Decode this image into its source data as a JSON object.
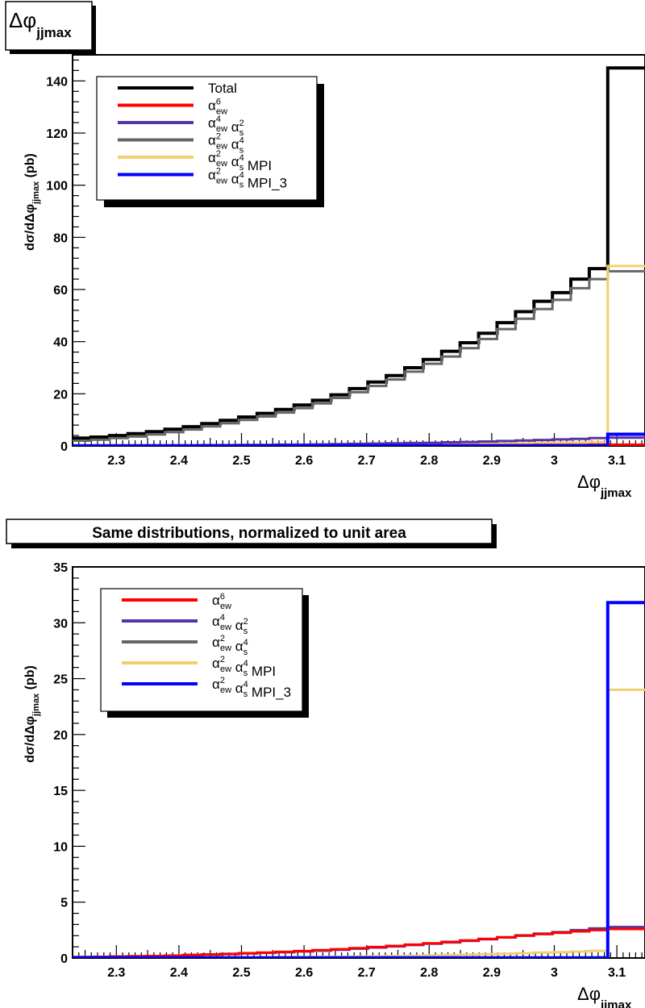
{
  "chart_data": [
    {
      "type": "step",
      "title": "Δφ_jjmax",
      "title_parts": {
        "main": "Δφ",
        "sub": "jjmax"
      },
      "xlabel_parts": {
        "main": "Δφ",
        "sub": "jjmax"
      },
      "ylabel_parts": {
        "main": "dσ/dΔφ",
        "sub": "jjmax",
        "tail": "  (pb)"
      },
      "xlim": [
        2.23,
        3.145
      ],
      "ylim": [
        0,
        150
      ],
      "x_ticks": [
        "2.3",
        "2.4",
        "2.5",
        "2.6",
        "2.7",
        "2.8",
        "2.9",
        "3",
        "3.1"
      ],
      "y_ticks": [
        "0",
        "20",
        "40",
        "60",
        "80",
        "100",
        "120",
        "140"
      ],
      "x_tick_values": [
        2.3,
        2.4,
        2.5,
        2.6,
        2.7,
        2.8,
        2.9,
        3.0,
        3.1
      ],
      "y_tick_values": [
        0,
        20,
        40,
        60,
        80,
        100,
        120,
        140
      ],
      "bin_edges": [
        2.23,
        2.2595,
        2.289,
        2.3185,
        2.348,
        2.3775,
        2.407,
        2.4365,
        2.466,
        2.4955,
        2.525,
        2.5545,
        2.584,
        2.6135,
        2.643,
        2.6725,
        2.702,
        2.7315,
        2.761,
        2.7905,
        2.82,
        2.8495,
        2.879,
        2.9085,
        2.938,
        2.9675,
        2.997,
        3.0265,
        3.056,
        3.0855,
        3.115,
        3.145
      ],
      "legend_position": "top-left",
      "legend": [
        {
          "label": "Total",
          "color": "#000000"
        },
        {
          "label": "α^6_ew",
          "parts": [
            [
              "α",
              "6",
              "ew"
            ]
          ],
          "color": "#ff0000"
        },
        {
          "label": "α^4_ew α^2_s",
          "parts": [
            [
              "α",
              "4",
              "ew"
            ],
            [
              "α",
              "2",
              "s"
            ]
          ],
          "color": "#5533aa"
        },
        {
          "label": "α^2_ew α^4_s",
          "parts": [
            [
              "α",
              "2",
              "ew"
            ],
            [
              "α",
              "4",
              "s"
            ]
          ],
          "color": "#666666"
        },
        {
          "label": "α^2_ew α^4_s MPI",
          "parts": [
            [
              "α",
              "2",
              "ew"
            ],
            [
              "α",
              "4",
              "s"
            ]
          ],
          "suffix": " MPI",
          "color": "#f0d070"
        },
        {
          "label": "α^2_ew α^4_s MPI_3",
          "parts": [
            [
              "α",
              "2",
              "ew"
            ],
            [
              "α",
              "4",
              "s"
            ]
          ],
          "suffix": " MPI_3",
          "color": "#0000ff"
        }
      ],
      "series": [
        {
          "name": "Total",
          "color": "#000000",
          "width": 4,
          "values": [
            3,
            3.4,
            4,
            4.7,
            5.5,
            6.4,
            7.4,
            8.6,
            9.8,
            11.1,
            12.5,
            14,
            15.7,
            17.5,
            19.6,
            22,
            24.5,
            27,
            30,
            33.2,
            36.3,
            39.6,
            43.2,
            47.3,
            51.5,
            55.5,
            58.8,
            64,
            68,
            145,
            145
          ]
        },
        {
          "name": "α^2_ew α^4_s",
          "color": "#666666",
          "width": 3,
          "values": [
            2,
            2.4,
            3,
            3.6,
            4.4,
            5.3,
            6.3,
            7.5,
            8.7,
            10,
            11.3,
            12.8,
            14.5,
            16.3,
            18.4,
            20.6,
            23,
            25.5,
            28.5,
            31.5,
            34.3,
            37.5,
            41,
            44.8,
            48.8,
            52.5,
            56,
            60.5,
            64,
            67,
            67
          ]
        },
        {
          "name": "α^2_ew α^4_s MPI",
          "color": "#f0d070",
          "width": 3,
          "values": [
            0.1,
            0.1,
            0.1,
            0.1,
            0.1,
            0.1,
            0.1,
            0.1,
            0.1,
            0.2,
            0.2,
            0.2,
            0.2,
            0.3,
            0.3,
            0.3,
            0.4,
            0.4,
            0.5,
            0.5,
            0.6,
            0.7,
            0.8,
            0.9,
            1,
            1.1,
            1.2,
            1.3,
            1.5,
            69,
            69
          ]
        },
        {
          "name": "α^4_ew α^2_s",
          "color": "#5533aa",
          "width": 3,
          "values": [
            0.1,
            0.1,
            0.1,
            0.1,
            0.2,
            0.2,
            0.2,
            0.3,
            0.3,
            0.4,
            0.4,
            0.5,
            0.5,
            0.6,
            0.7,
            0.8,
            0.9,
            1,
            1.1,
            1.2,
            1.4,
            1.5,
            1.7,
            1.9,
            2.1,
            2.3,
            2.5,
            2.7,
            3,
            3.2,
            3.2
          ]
        },
        {
          "name": "α^6_ew",
          "color": "#ff0000",
          "width": 3,
          "values": [
            0.05,
            0.05,
            0.05,
            0.05,
            0.05,
            0.05,
            0.1,
            0.1,
            0.1,
            0.1,
            0.1,
            0.1,
            0.1,
            0.1,
            0.2,
            0.2,
            0.2,
            0.2,
            0.2,
            0.2,
            0.3,
            0.3,
            0.3,
            0.3,
            0.3,
            0.4,
            0.4,
            0.4,
            0.5,
            0.5,
            0.5
          ]
        },
        {
          "name": "α^2_ew α^4_s MPI_3",
          "color": "#0000ff",
          "width": 4,
          "values": [
            0.05,
            0.05,
            0.05,
            0.05,
            0.05,
            0.05,
            0.05,
            0.05,
            0.05,
            0.05,
            0.05,
            0.05,
            0.05,
            0.05,
            0.05,
            0.05,
            0.05,
            0.05,
            0.05,
            0.05,
            0.05,
            0.05,
            0.05,
            0.05,
            0.05,
            0.05,
            0.05,
            0.05,
            0.05,
            4.5,
            4.5
          ]
        }
      ]
    },
    {
      "type": "step",
      "title": "Same distributions, normalized to unit area",
      "xlabel_parts": {
        "main": "Δφ",
        "sub": "jjmax"
      },
      "ylabel_parts": {
        "main": "dσ/dΔφ",
        "sub": "jjmax",
        "tail": "  (pb)"
      },
      "xlim": [
        2.23,
        3.145
      ],
      "ylim": [
        0,
        35
      ],
      "x_ticks": [
        "2.3",
        "2.4",
        "2.5",
        "2.6",
        "2.7",
        "2.8",
        "2.9",
        "3",
        "3.1"
      ],
      "y_ticks": [
        "0",
        "5",
        "10",
        "15",
        "20",
        "25",
        "30",
        "35"
      ],
      "x_tick_values": [
        2.3,
        2.4,
        2.5,
        2.6,
        2.7,
        2.8,
        2.9,
        3.0,
        3.1
      ],
      "y_tick_values": [
        0,
        5,
        10,
        15,
        20,
        25,
        30,
        35
      ],
      "bin_edges": [
        2.23,
        2.2595,
        2.289,
        2.3185,
        2.348,
        2.3775,
        2.407,
        2.4365,
        2.466,
        2.4955,
        2.525,
        2.5545,
        2.584,
        2.6135,
        2.643,
        2.6725,
        2.702,
        2.7315,
        2.761,
        2.7905,
        2.82,
        2.8495,
        2.879,
        2.9085,
        2.938,
        2.9675,
        2.997,
        3.0265,
        3.056,
        3.0855,
        3.115,
        3.145
      ],
      "legend_position": "top-left",
      "legend": [
        {
          "label": "α^6_ew",
          "parts": [
            [
              "α",
              "6",
              "ew"
            ]
          ],
          "color": "#ff0000"
        },
        {
          "label": "α^4_ew α^2_s",
          "parts": [
            [
              "α",
              "4",
              "ew"
            ],
            [
              "α",
              "2",
              "s"
            ]
          ],
          "color": "#5533aa"
        },
        {
          "label": "α^2_ew α^4_s",
          "parts": [
            [
              "α",
              "2",
              "ew"
            ],
            [
              "α",
              "4",
              "s"
            ]
          ],
          "color": "#666666"
        },
        {
          "label": "α^2_ew α^4_s MPI",
          "parts": [
            [
              "α",
              "2",
              "ew"
            ],
            [
              "α",
              "4",
              "s"
            ]
          ],
          "suffix": " MPI",
          "color": "#f0d070"
        },
        {
          "label": "α^2_ew α^4_s MPI_3",
          "parts": [
            [
              "α",
              "2",
              "ew"
            ],
            [
              "α",
              "4",
              "s"
            ]
          ],
          "suffix": " MPI_3",
          "color": "#0000ff"
        }
      ],
      "series": [
        {
          "name": "α^2_ew α^4_s MPI",
          "color": "#f0d070",
          "width": 3,
          "values": [
            0.01,
            0.01,
            0.01,
            0.02,
            0.02,
            0.02,
            0.03,
            0.03,
            0.04,
            0.05,
            0.06,
            0.07,
            0.08,
            0.1,
            0.11,
            0.13,
            0.15,
            0.17,
            0.2,
            0.23,
            0.26,
            0.3,
            0.34,
            0.38,
            0.43,
            0.48,
            0.53,
            0.58,
            0.64,
            24,
            24
          ]
        },
        {
          "name": "α^2_ew α^4_s",
          "color": "#666666",
          "width": 3,
          "values": [
            0.08,
            0.1,
            0.12,
            0.15,
            0.18,
            0.22,
            0.26,
            0.31,
            0.36,
            0.42,
            0.47,
            0.53,
            0.6,
            0.68,
            0.76,
            0.86,
            0.96,
            1.06,
            1.18,
            1.3,
            1.43,
            1.56,
            1.7,
            1.86,
            2.03,
            2.18,
            2.32,
            2.5,
            2.65,
            2.78,
            2.78
          ]
        },
        {
          "name": "α^4_ew α^2_s",
          "color": "#5533aa",
          "width": 3,
          "values": [
            0.08,
            0.1,
            0.12,
            0.15,
            0.18,
            0.22,
            0.26,
            0.3,
            0.35,
            0.41,
            0.46,
            0.52,
            0.59,
            0.66,
            0.74,
            0.84,
            0.94,
            1.04,
            1.16,
            1.28,
            1.4,
            1.54,
            1.68,
            1.84,
            2,
            2.15,
            2.3,
            2.46,
            2.62,
            2.75,
            2.75
          ]
        },
        {
          "name": "α^6_ew",
          "color": "#ff0000",
          "width": 3,
          "values": [
            0.08,
            0.1,
            0.12,
            0.15,
            0.18,
            0.22,
            0.27,
            0.32,
            0.37,
            0.43,
            0.49,
            0.55,
            0.62,
            0.7,
            0.79,
            0.88,
            0.98,
            1.08,
            1.2,
            1.32,
            1.44,
            1.57,
            1.7,
            1.85,
            2,
            2.14,
            2.26,
            2.38,
            2.5,
            2.6,
            2.6
          ]
        },
        {
          "name": "α^2_ew α^4_s MPI_3",
          "color": "#0000ff",
          "width": 4,
          "values": [
            0.02,
            0.02,
            0.02,
            0.02,
            0.02,
            0.02,
            0.02,
            0.02,
            0.02,
            0.02,
            0.02,
            0.02,
            0.02,
            0.02,
            0.02,
            0.02,
            0.02,
            0.02,
            0.02,
            0.02,
            0.02,
            0.02,
            0.02,
            0.02,
            0.02,
            0.02,
            0.02,
            0.02,
            0.02,
            31.8,
            31.8
          ]
        }
      ]
    }
  ]
}
